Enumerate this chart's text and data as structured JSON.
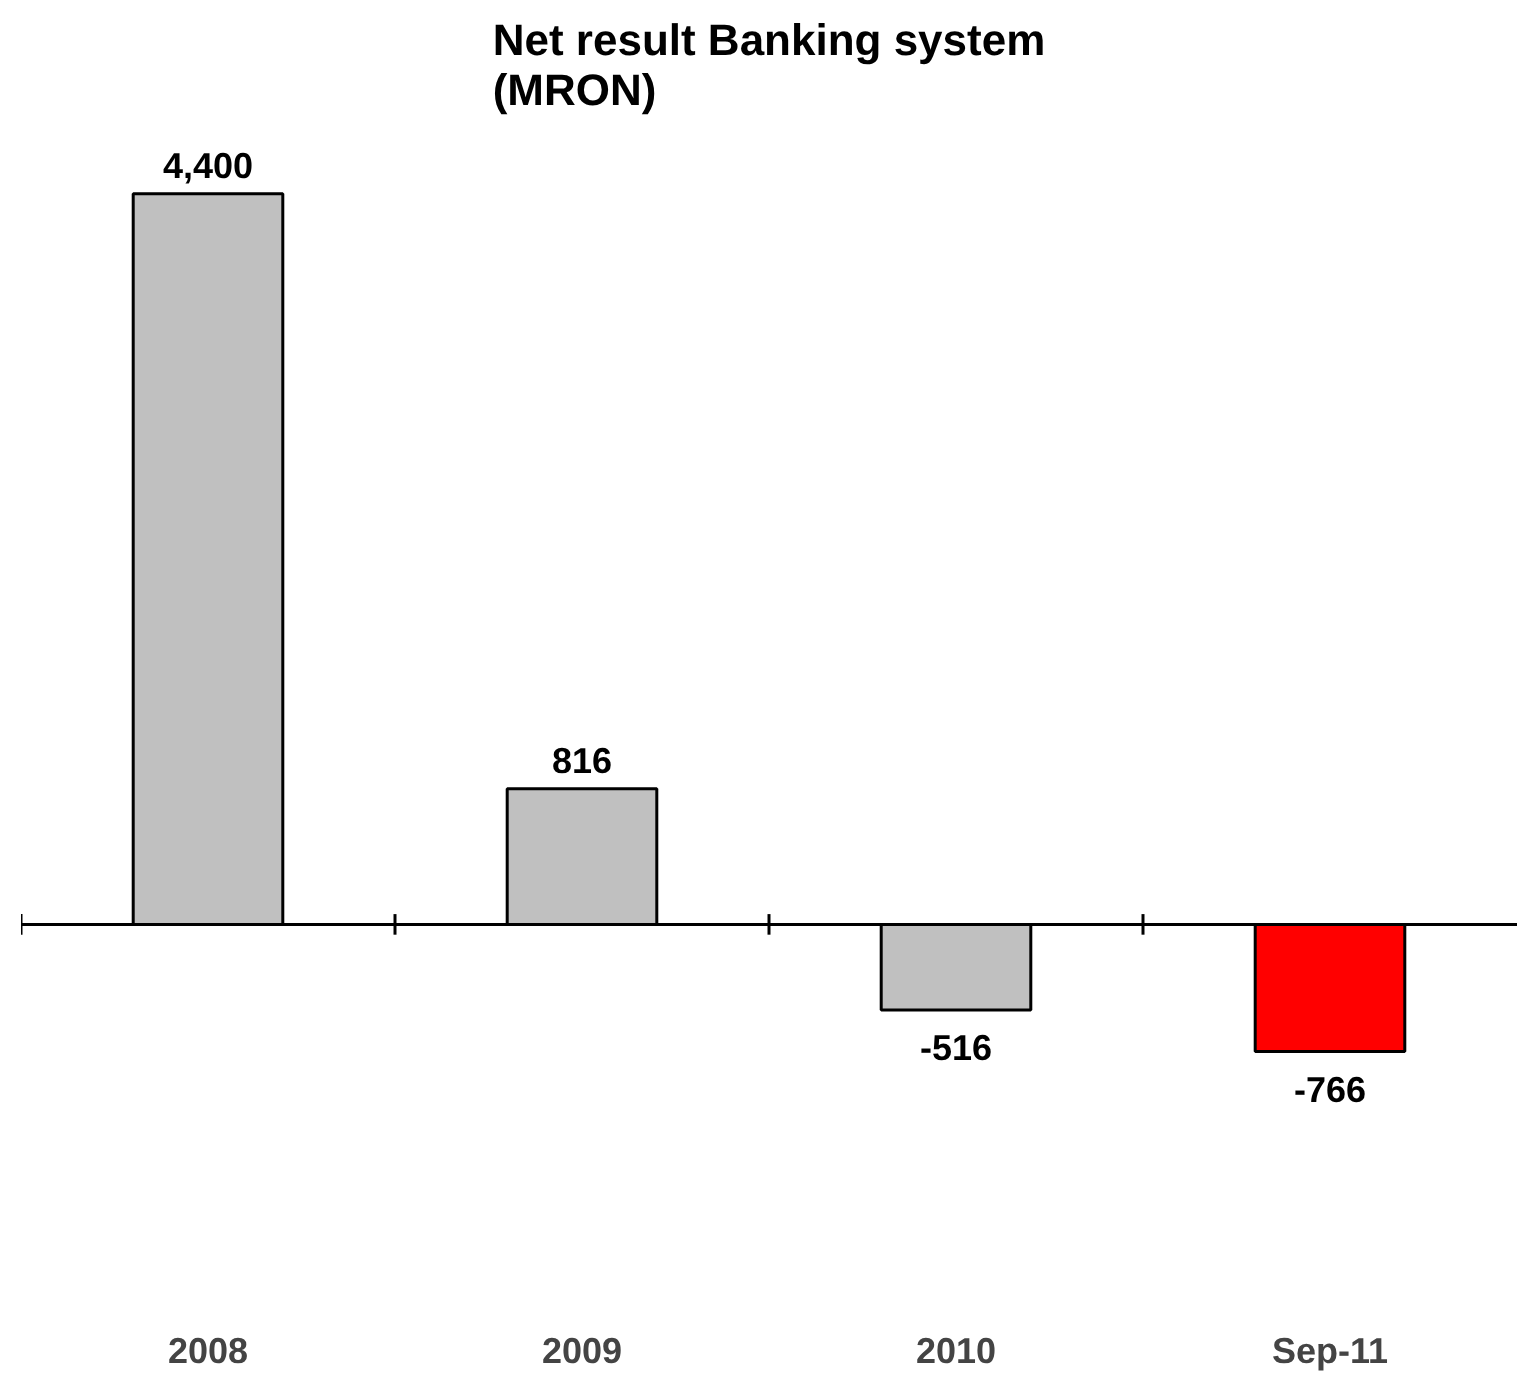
{
  "chart_data": {
    "type": "bar",
    "title": "Net result Banking system\n(MRON)",
    "categories": [
      "2008",
      "2009",
      "2010",
      "Sep-11"
    ],
    "values": [
      4400,
      816,
      -516,
      -766
    ],
    "colors": [
      "#c0c0c0",
      "#c0c0c0",
      "#c0c0c0",
      "#ff0000"
    ],
    "value_labels": [
      "4,400",
      "816",
      "-516",
      "-766"
    ],
    "grid": false
  }
}
